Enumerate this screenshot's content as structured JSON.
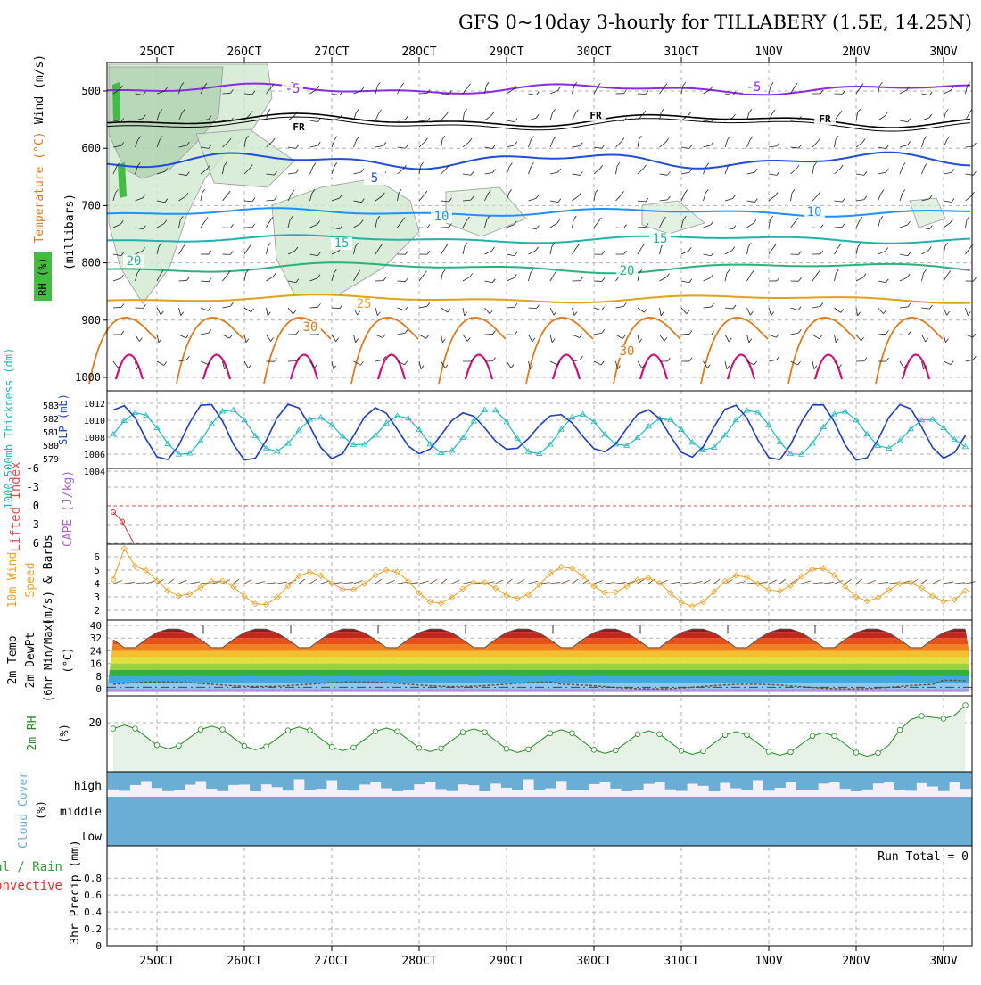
{
  "title": "GFS 0~10day 3-hourly for TILLABERY (1.5E, 14.25N)",
  "x_axis": {
    "tick_labels": [
      "25OCT",
      "26OCT",
      "27OCT",
      "28OCT",
      "29OCT",
      "30OCT",
      "31OCT",
      "1NOV",
      "2NOV",
      "3NOV"
    ]
  },
  "colors": {
    "purple": "#8a2be2",
    "black": "#000000",
    "blue": "#1f4fd8",
    "light_blue": "#1e90ff",
    "teal": "#20b2aa",
    "green": "#2ab27b",
    "orange": "#e0a020",
    "dark_orange": "#e07a20",
    "magenta": "#d0107a",
    "rh_shade": "#cfe8cf",
    "cloud_blue": "#6aaed6",
    "cloud_bg": "#f4f0f8",
    "slp_blue": "#1f3fbf",
    "thick_cyan": "#20b8c0",
    "wind_orange": "#f0a020",
    "rh2m_green": "#228b22",
    "rh2m_fill": "#e6f2e6"
  },
  "panels": {
    "upper_air": {
      "ylabel_wind": "Wind (m/s)",
      "ylabel_temp": "Temperature (°C)",
      "ylabel_rh": "RH (%)",
      "ylabel_mb": "(millibars)",
      "y_ticks": [
        "500",
        "600",
        "700",
        "800",
        "900",
        "1000"
      ],
      "contour_labels": [
        {
          "text": "-5",
          "color": "purple"
        },
        {
          "text": "-5",
          "color": "purple"
        },
        {
          "text": "FR",
          "color": "black"
        },
        {
          "text": "FR",
          "color": "black"
        },
        {
          "text": "FR",
          "color": "black"
        },
        {
          "text": "5",
          "color": "blue"
        },
        {
          "text": "10",
          "color": "light_blue"
        },
        {
          "text": "10",
          "color": "light_blue"
        },
        {
          "text": "15",
          "color": "teal"
        },
        {
          "text": "15",
          "color": "teal"
        },
        {
          "text": "20",
          "color": "green"
        },
        {
          "text": "20",
          "color": "green"
        },
        {
          "text": "25",
          "color": "orange"
        },
        {
          "text": "30",
          "color": "dark_orange"
        },
        {
          "text": "30",
          "color": "dark_orange"
        }
      ]
    },
    "slp": {
      "ylabel_left": "1000-500mb Thickness (dm)",
      "ylabel_right": "SLP (mb)",
      "left_ticks": [
        "583",
        "582",
        "581",
        "580",
        "579"
      ],
      "right_ticks": [
        "1012",
        "1010",
        "1008",
        "1006",
        "1004"
      ]
    },
    "cape": {
      "ylabel_li": "Lifted Index",
      "ylabel_cape": "CAPE (J/kg)",
      "y_ticks": [
        "-6",
        "-3",
        "0",
        "3",
        "6"
      ]
    },
    "wind10m": {
      "ylabel1": "10m Wind",
      "ylabel2": "Speed",
      "ylabel3": "(m/s) & Barbs",
      "y_ticks": [
        "6",
        "5",
        "4",
        "3",
        "2"
      ]
    },
    "temp2m": {
      "ylabel1": "2m Temp",
      "ylabel2": "2m DewPt",
      "ylabel3": "(6hr Min/Max)",
      "ylabel_unit": "(°C)",
      "y_ticks": [
        "40",
        "32",
        "24",
        "16",
        "8",
        "0"
      ]
    },
    "rh2m": {
      "ylabel": "2m RH",
      "unit": "(%)",
      "y_ticks": [
        "20"
      ]
    },
    "cloud": {
      "ylabel": "Cloud Cover",
      "unit": "(%)",
      "levels": [
        "high",
        "middle",
        "low"
      ]
    },
    "precip": {
      "ylabel1": "tal / Rain",
      "ylabel2": "Convective",
      "ylabel3": "3hr Precip (mm)",
      "y_ticks": [
        "0.8",
        "0.6",
        "0.4",
        "0.2",
        "0"
      ],
      "run_total": "Run Total = 0"
    }
  },
  "chart_data": {
    "type": "line",
    "x": [
      "25OCT",
      "26OCT",
      "27OCT",
      "28OCT",
      "29OCT",
      "30OCT",
      "31OCT",
      "1NOV",
      "2NOV",
      "3NOV"
    ],
    "series": [
      {
        "name": "SLP (mb)",
        "values": [
          1009.5,
          1010.5,
          1008.5,
          1010.0,
          1008.5,
          1010.5,
          1009.0,
          1010.5,
          1009.0,
          1008.0
        ]
      },
      {
        "name": "1000-500mb Thickness (dm)",
        "values": [
          581.5,
          580.0,
          580.5,
          579.5,
          580.0,
          582.0,
          580.5,
          580.5,
          581.0,
          579.5
        ]
      },
      {
        "name": "10m Wind Speed (m/s)",
        "values": [
          4.2,
          3.5,
          3.5,
          3.2,
          4.0,
          4.0,
          4.0,
          5.0,
          3.5,
          4.0
        ]
      },
      {
        "name": "2m Temp (°C)",
        "values": [
          26,
          38,
          27,
          38,
          27,
          38,
          27,
          38,
          27,
          26
        ]
      },
      {
        "name": "2m DewPt (°C)",
        "values": [
          4,
          3,
          3,
          5,
          2,
          2,
          2,
          2,
          1,
          6
        ]
      },
      {
        "name": "2m RH (%)",
        "values": [
          20,
          13,
          12,
          11,
          12,
          10,
          12,
          10,
          11,
          31
        ]
      },
      {
        "name": "3hr Precip (mm)",
        "values": [
          0,
          0,
          0,
          0,
          0,
          0,
          0,
          0,
          0,
          0
        ]
      }
    ],
    "ylim_slp": [
      1004,
      1013
    ],
    "ylim_thickness": [
      578.5,
      583.5
    ],
    "ylim_wind": [
      1.6,
      7
    ],
    "ylim_temp": [
      -2,
      42
    ],
    "ylim_precip": [
      0,
      1
    ],
    "grid": true
  }
}
